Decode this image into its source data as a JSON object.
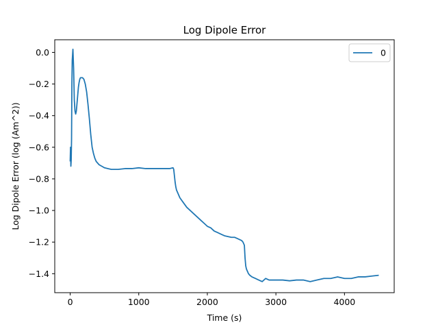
{
  "chart_data": {
    "type": "line",
    "title": "Log Dipole Error",
    "xlabel": "Time (s)",
    "ylabel": "Log Dipole Error (log (Am^2))",
    "xlim": [
      -225,
      4725
    ],
    "ylim": [
      -1.52,
      0.08
    ],
    "xticks": [
      0,
      1000,
      2000,
      3000,
      4000
    ],
    "xtick_labels": [
      "0",
      "1000",
      "2000",
      "3000",
      "4000"
    ],
    "yticks": [
      0.0,
      -0.2,
      -0.4,
      -0.6,
      -0.8,
      -1.0,
      -1.2,
      -1.4
    ],
    "ytick_labels": [
      "0.0",
      "−0.2",
      "−0.4",
      "−0.6",
      "−0.8",
      "−1.0",
      "−1.2",
      "−1.4"
    ],
    "grid": false,
    "legend": "top-right",
    "series": [
      {
        "name": "0",
        "color": "#1f77b4",
        "x": [
          0,
          5,
          10,
          15,
          20,
          25,
          30,
          40,
          50,
          60,
          70,
          80,
          90,
          100,
          110,
          120,
          130,
          140,
          150,
          160,
          180,
          200,
          220,
          240,
          260,
          280,
          300,
          320,
          340,
          360,
          380,
          400,
          420,
          440,
          460,
          480,
          500,
          550,
          600,
          650,
          700,
          800,
          900,
          1000,
          1100,
          1200,
          1300,
          1400,
          1450,
          1500,
          1510,
          1520,
          1530,
          1540,
          1550,
          1560,
          1580,
          1600,
          1650,
          1700,
          1750,
          1800,
          1850,
          1900,
          1950,
          2000,
          2050,
          2100,
          2150,
          2200,
          2250,
          2300,
          2350,
          2400,
          2450,
          2500,
          2520,
          2540,
          2550,
          2560,
          2570,
          2580,
          2600,
          2620,
          2650,
          2700,
          2750,
          2800,
          2850,
          2900,
          3000,
          3100,
          3200,
          3300,
          3400,
          3500,
          3600,
          3700,
          3800,
          3900,
          4000,
          4100,
          4200,
          4300,
          4400,
          4500
        ],
        "values": [
          -0.69,
          -0.6,
          -0.72,
          -0.68,
          -0.55,
          -0.2,
          -0.05,
          0.02,
          -0.1,
          -0.3,
          -0.37,
          -0.39,
          -0.37,
          -0.32,
          -0.27,
          -0.22,
          -0.19,
          -0.17,
          -0.16,
          -0.16,
          -0.16,
          -0.17,
          -0.2,
          -0.25,
          -0.33,
          -0.42,
          -0.52,
          -0.6,
          -0.64,
          -0.67,
          -0.69,
          -0.7,
          -0.71,
          -0.715,
          -0.72,
          -0.725,
          -0.73,
          -0.735,
          -0.74,
          -0.74,
          -0.74,
          -0.735,
          -0.735,
          -0.73,
          -0.735,
          -0.735,
          -0.735,
          -0.735,
          -0.735,
          -0.73,
          -0.74,
          -0.78,
          -0.82,
          -0.85,
          -0.87,
          -0.88,
          -0.9,
          -0.92,
          -0.95,
          -0.98,
          -1.0,
          -1.02,
          -1.04,
          -1.06,
          -1.08,
          -1.1,
          -1.11,
          -1.13,
          -1.14,
          -1.15,
          -1.16,
          -1.165,
          -1.17,
          -1.17,
          -1.18,
          -1.19,
          -1.2,
          -1.22,
          -1.3,
          -1.35,
          -1.37,
          -1.38,
          -1.4,
          -1.41,
          -1.42,
          -1.43,
          -1.44,
          -1.45,
          -1.43,
          -1.44,
          -1.44,
          -1.44,
          -1.445,
          -1.44,
          -1.44,
          -1.45,
          -1.44,
          -1.43,
          -1.43,
          -1.42,
          -1.43,
          -1.43,
          -1.42,
          -1.42,
          -1.415,
          -1.41
        ]
      }
    ]
  }
}
